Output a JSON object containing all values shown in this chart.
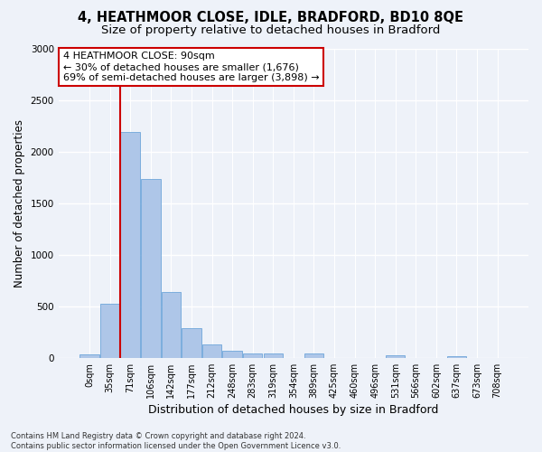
{
  "title": "4, HEATHMOOR CLOSE, IDLE, BRADFORD, BD10 8QE",
  "subtitle": "Size of property relative to detached houses in Bradford",
  "xlabel": "Distribution of detached houses by size in Bradford",
  "ylabel": "Number of detached properties",
  "bin_labels": [
    "0sqm",
    "35sqm",
    "71sqm",
    "106sqm",
    "142sqm",
    "177sqm",
    "212sqm",
    "248sqm",
    "283sqm",
    "319sqm",
    "354sqm",
    "389sqm",
    "425sqm",
    "460sqm",
    "496sqm",
    "531sqm",
    "566sqm",
    "602sqm",
    "637sqm",
    "673sqm",
    "708sqm"
  ],
  "bar_values": [
    30,
    525,
    2190,
    1740,
    635,
    290,
    130,
    70,
    45,
    40,
    0,
    40,
    0,
    0,
    0,
    25,
    0,
    0,
    20,
    0,
    0
  ],
  "bar_color": "#aec6e8",
  "bar_edge_color": "#5b9bd5",
  "vline_x_index": 2,
  "vline_color": "#cc0000",
  "annotation_text": "4 HEATHMOOR CLOSE: 90sqm\n← 30% of detached houses are smaller (1,676)\n69% of semi-detached houses are larger (3,898) →",
  "annotation_box_color": "#ffffff",
  "annotation_box_edge": "#cc0000",
  "ylim": [
    0,
    3000
  ],
  "yticks": [
    0,
    500,
    1000,
    1500,
    2000,
    2500,
    3000
  ],
  "footer": "Contains HM Land Registry data © Crown copyright and database right 2024.\nContains public sector information licensed under the Open Government Licence v3.0.",
  "bg_color": "#eef2f9",
  "plot_bg_color": "#eef2f9",
  "grid_color": "#ffffff",
  "title_fontsize": 10.5,
  "subtitle_fontsize": 9.5,
  "tick_fontsize": 7,
  "ylabel_fontsize": 8.5,
  "xlabel_fontsize": 9,
  "annotation_fontsize": 8,
  "footer_fontsize": 6
}
